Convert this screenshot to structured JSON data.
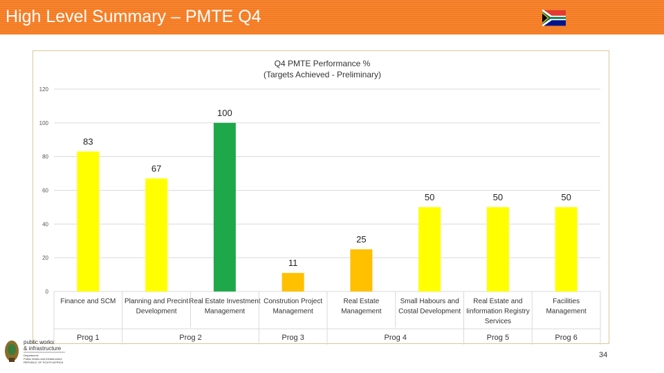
{
  "header": {
    "title": "High Level Summary – PMTE Q4"
  },
  "footer": {
    "page_number": "34",
    "logo_text": [
      "public works",
      "& infrastructure",
      "Department:",
      "Public Works and Infrastructure",
      "REPUBLIC OF SOUTH AFRICA"
    ]
  },
  "colors": {
    "header_orange": "#f47a20",
    "bar_yellow": "#ffff00",
    "bar_green": "#1fa84a",
    "bar_amber": "#ffc000"
  },
  "chart_data": {
    "type": "bar",
    "title": "Q4 PMTE Performance %",
    "subtitle": "(Targets Achieved - Preliminary)",
    "categories": [
      "Finance and SCM",
      "Planning and Precint Development",
      "Real Estate Investment Management",
      "Constrution Project Management",
      "Real Estate Management",
      "Small Habours and Costal Development",
      "Real Estate and Iinformation Registry Services",
      "Facilities Management"
    ],
    "values": [
      83,
      67,
      100,
      11,
      25,
      50,
      50,
      50
    ],
    "bar_colors": [
      "#ffff00",
      "#ffff00",
      "#1fa84a",
      "#ffc000",
      "#ffc000",
      "#ffff00",
      "#ffff00",
      "#ffff00"
    ],
    "groups": [
      {
        "label": "Prog 1",
        "categories": [
          0
        ]
      },
      {
        "label": "Prog 2",
        "categories": [
          1,
          2
        ]
      },
      {
        "label": "Prog 3",
        "categories": [
          3
        ]
      },
      {
        "label": "Prog 4",
        "categories": [
          4,
          5
        ]
      },
      {
        "label": "Prog 5",
        "categories": [
          6
        ]
      },
      {
        "label": "Prog 6",
        "categories": [
          7
        ]
      }
    ],
    "yticks": [
      0,
      20,
      40,
      60,
      80,
      100,
      120
    ],
    "ylim": [
      0,
      120
    ],
    "grid": true,
    "legend": "none"
  }
}
